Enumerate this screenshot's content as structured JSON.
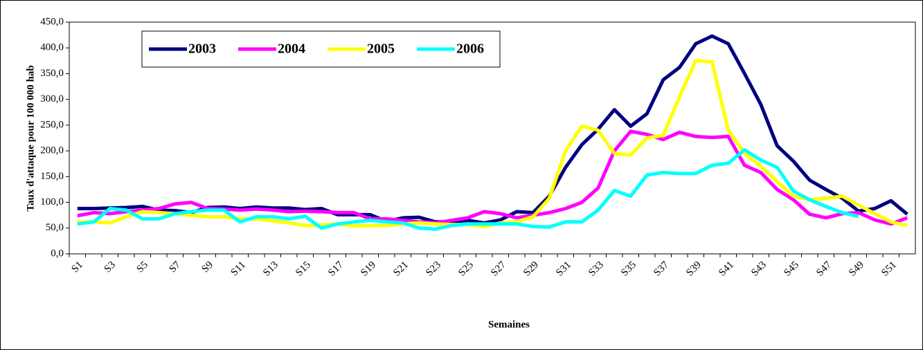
{
  "chart_data": {
    "type": "line",
    "y_label": "Taux d'attaque pour 100 000 hab",
    "x_label": "Semaines",
    "categories": [
      "S1",
      null,
      "S3",
      null,
      "S5",
      null,
      "S7",
      null,
      "S9",
      null,
      "S11",
      null,
      "S13",
      null,
      "S15",
      null,
      "S17",
      null,
      "S19",
      null,
      "S21",
      null,
      "S23",
      null,
      "S25",
      null,
      "S27",
      null,
      "S29",
      null,
      "S31",
      null,
      "S33",
      null,
      "S35",
      null,
      "S37",
      null,
      "S39",
      null,
      "S41",
      null,
      "S43",
      null,
      "S45",
      null,
      "S47",
      null,
      "S49",
      null,
      "S51",
      null
    ],
    "ylim": [
      0,
      450
    ],
    "yticks": [
      {
        "value": 0,
        "label": "0,0"
      },
      {
        "value": 50,
        "label": "50,0"
      },
      {
        "value": 100,
        "label": "100,0"
      },
      {
        "value": 150,
        "label": "150,0"
      },
      {
        "value": 200,
        "label": "200,0"
      },
      {
        "value": 250,
        "label": "250,0"
      },
      {
        "value": 300,
        "label": "300,0"
      },
      {
        "value": 350,
        "label": "350,0"
      },
      {
        "value": 400,
        "label": "400,0"
      },
      {
        "value": 450,
        "label": "450,0"
      }
    ],
    "grid": false,
    "legend": "top-left",
    "series": [
      {
        "name": "2003",
        "color": "#000080",
        "values": [
          88,
          88,
          89,
          90,
          92,
          85,
          84,
          80,
          90,
          91,
          88,
          91,
          89,
          89,
          86,
          88,
          76,
          76,
          76,
          63,
          70,
          71,
          62,
          62,
          65,
          60,
          66,
          82,
          80,
          112,
          168,
          212,
          242,
          280,
          248,
          272,
          338,
          362,
          408,
          423,
          408,
          350,
          290,
          210,
          180,
          143,
          125,
          108,
          83,
          88,
          103,
          77
        ]
      },
      {
        "name": "2004",
        "color": "#ff00ff",
        "values": [
          74,
          80,
          78,
          82,
          85,
          88,
          97,
          100,
          88,
          87,
          85,
          87,
          85,
          82,
          83,
          82,
          80,
          80,
          68,
          68,
          65,
          62,
          60,
          65,
          70,
          82,
          78,
          70,
          75,
          80,
          88,
          100,
          128,
          200,
          238,
          232,
          222,
          236,
          228,
          226,
          228,
          172,
          158,
          125,
          105,
          77,
          70,
          78,
          80,
          66,
          58,
          70
        ]
      },
      {
        "name": "2005",
        "color": "#ffff00",
        "values": [
          62,
          62,
          60,
          72,
          82,
          80,
          78,
          75,
          72,
          72,
          68,
          68,
          64,
          60,
          55,
          56,
          58,
          54,
          55,
          55,
          58,
          60,
          58,
          57,
          57,
          53,
          60,
          62,
          72,
          108,
          200,
          248,
          240,
          195,
          192,
          225,
          230,
          305,
          375,
          373,
          240,
          195,
          170,
          140,
          112,
          105,
          108,
          112,
          95,
          78,
          62,
          55
        ]
      },
      {
        "name": "2006",
        "color": "#00ffff",
        "values": [
          58,
          62,
          88,
          85,
          68,
          68,
          78,
          82,
          85,
          85,
          62,
          72,
          72,
          68,
          73,
          50,
          58,
          62,
          65,
          62,
          60,
          50,
          48,
          55,
          58,
          58,
          58,
          58,
          53,
          52,
          62,
          62,
          85,
          123,
          112,
          153,
          158,
          156,
          156,
          172,
          176,
          202,
          182,
          168,
          122,
          105,
          92,
          80,
          73,
          null,
          null,
          null
        ]
      }
    ]
  }
}
